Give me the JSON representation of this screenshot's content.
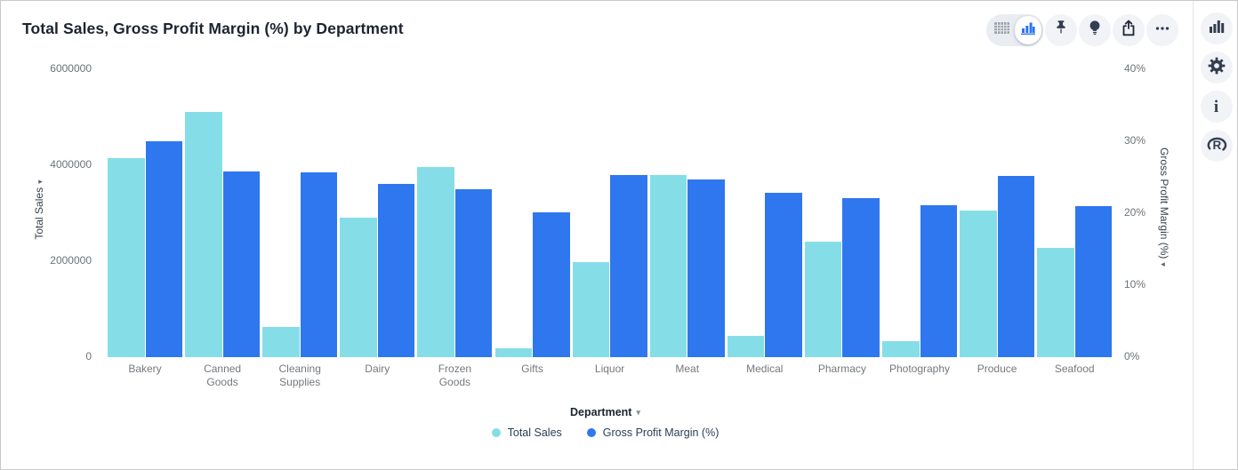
{
  "header": {
    "title": "Total Sales, Gross Profit Margin (%) by Department"
  },
  "toolbar": {
    "view_toggle": {
      "options": [
        "table-view",
        "chart-view"
      ],
      "selected": "chart-view"
    },
    "buttons": [
      "pin",
      "insights-bulb",
      "share",
      "more-options"
    ]
  },
  "side_rail": {
    "buttons": [
      "chart-type",
      "configure-gear",
      "info",
      "r-analysis"
    ]
  },
  "icons": {
    "sort_caret_right": "▸",
    "sort_caret_left": "◂",
    "dropdown_caret": "▾"
  },
  "legend": {
    "items": [
      {
        "label": "Total Sales",
        "color": "#85DEE7"
      },
      {
        "label": "Gross Profit Margin (%)",
        "color": "#2F77EF"
      }
    ]
  },
  "chart_data": {
    "type": "bar",
    "title": "Total Sales, Gross Profit Margin (%) by Department",
    "categories": [
      "Bakery",
      "Canned Goods",
      "Cleaning Supplies",
      "Dairy",
      "Frozen Goods",
      "Gifts",
      "Liquor",
      "Meat",
      "Medical",
      "Pharmacy",
      "Photography",
      "Produce",
      "Seafood"
    ],
    "series": [
      {
        "name": "Total Sales",
        "axis": "left",
        "color": "#85DEE7",
        "values": [
          4140000,
          5120000,
          630000,
          2910000,
          3970000,
          190000,
          1980000,
          3800000,
          450000,
          2410000,
          340000,
          3050000,
          2270000
        ]
      },
      {
        "name": "Gross Profit Margin (%)",
        "axis": "right",
        "color": "#2F77EF",
        "values": [
          30.0,
          25.8,
          25.7,
          24.1,
          23.4,
          20.1,
          25.3,
          24.7,
          22.9,
          22.1,
          21.1,
          25.2,
          21.0
        ]
      }
    ],
    "xlabel": "Department",
    "ylabel_left": "Total Sales",
    "ylabel_right": "Gross Profit Margin (%)",
    "ylim_left": [
      0,
      6000000
    ],
    "ylim_right": [
      0,
      40
    ],
    "yticks_left": [
      "0",
      "2000000",
      "4000000",
      "6000000"
    ],
    "yticks_right": [
      "0%",
      "10%",
      "20%",
      "30%",
      "40%"
    ],
    "grid": false,
    "legend_position": "bottom"
  }
}
